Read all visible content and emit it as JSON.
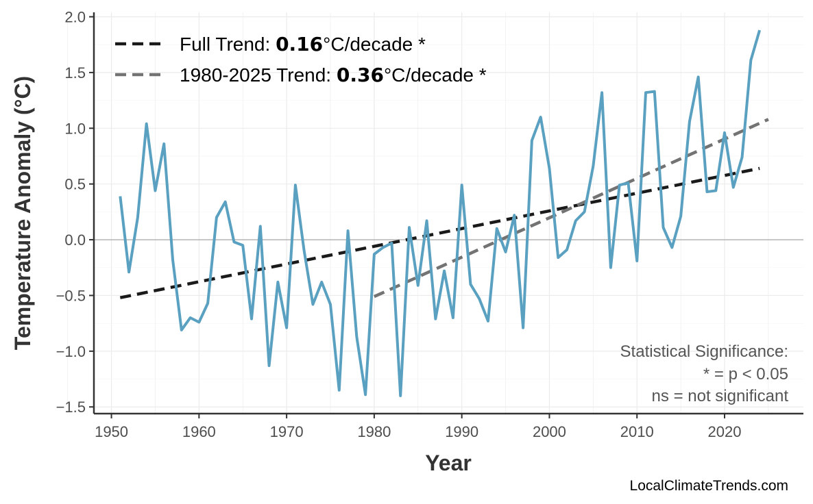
{
  "chart_data": {
    "type": "line",
    "xlabel": "Year",
    "ylabel": "Temperature Anomaly (°C)",
    "xlim": [
      1948,
      2029
    ],
    "ylim": [
      -1.56,
      2.04
    ],
    "grid": true,
    "x_ticks": [
      1950,
      1960,
      1970,
      1980,
      1990,
      2000,
      2010,
      2020
    ],
    "y_ticks": [
      -1.5,
      -1.0,
      -0.5,
      0.0,
      0.5,
      1.0,
      1.5,
      2.0
    ],
    "x_tick_labels": [
      "1950",
      "1960",
      "1970",
      "1980",
      "1990",
      "2000",
      "2010",
      "2020"
    ],
    "y_tick_labels": [
      "−1.5",
      "−1.0",
      "−0.5",
      "0.0",
      "0.5",
      "1.0",
      "1.5",
      "2.0"
    ],
    "series": [
      {
        "color": "#5aa0c0",
        "x": [
          1951,
          1952,
          1953,
          1954,
          1955,
          1956,
          1957,
          1958,
          1959,
          1960,
          1961,
          1962,
          1963,
          1964,
          1965,
          1966,
          1967,
          1968,
          1969,
          1970,
          1971,
          1972,
          1973,
          1974,
          1975,
          1976,
          1977,
          1978,
          1979,
          1980,
          1981,
          1982,
          1983,
          1984,
          1985,
          1986,
          1987,
          1988,
          1989,
          1990,
          1991,
          1992,
          1993,
          1994,
          1995,
          1996,
          1997,
          1998,
          1999,
          2000,
          2001,
          2002,
          2003,
          2004,
          2005,
          2006,
          2007,
          2008,
          2009,
          2010,
          2011,
          2012,
          2013,
          2014,
          2015,
          2016,
          2017,
          2018,
          2019,
          2020,
          2021,
          2022,
          2023,
          2024
        ],
        "y": [
          0.39,
          -0.29,
          0.2,
          1.04,
          0.44,
          0.86,
          -0.18,
          -0.81,
          -0.7,
          -0.74,
          -0.57,
          0.2,
          0.34,
          -0.02,
          -0.05,
          -0.71,
          0.12,
          -1.13,
          -0.38,
          -0.79,
          0.49,
          -0.1,
          -0.58,
          -0.38,
          -0.58,
          -1.35,
          0.08,
          -0.87,
          -1.39,
          -0.13,
          -0.07,
          -0.03,
          -1.4,
          0.11,
          -0.41,
          0.17,
          -0.71,
          -0.28,
          -0.7,
          0.49,
          -0.4,
          -0.53,
          -0.73,
          0.1,
          -0.11,
          0.22,
          -0.79,
          0.89,
          1.1,
          0.64,
          -0.16,
          -0.09,
          0.17,
          0.25,
          0.66,
          1.32,
          -0.25,
          0.49,
          0.51,
          -0.19,
          1.32,
          1.33,
          0.11,
          -0.07,
          0.21,
          1.06,
          1.46,
          0.43,
          0.44,
          0.96,
          0.47,
          0.74,
          1.61,
          1.88
        ]
      }
    ],
    "trends": [
      {
        "name_prefix": "Full Trend: ",
        "value": "0.16",
        "suffix": "°C/decade *",
        "color": "#1a1a1a",
        "x": [
          1951,
          2024
        ],
        "y": [
          -0.52,
          0.64
        ]
      },
      {
        "name_prefix": "1980-2025 Trend: ",
        "value": "0.36",
        "suffix": "°C/decade *",
        "color": "#737373",
        "x": [
          1980,
          2025
        ],
        "y": [
          -0.51,
          1.08
        ]
      }
    ],
    "annotation": [
      "Statistical Significance:",
      "* = p < 0.05",
      "ns = not significant"
    ],
    "credit": "LocalClimateTrends.com",
    "zero_line": true
  }
}
